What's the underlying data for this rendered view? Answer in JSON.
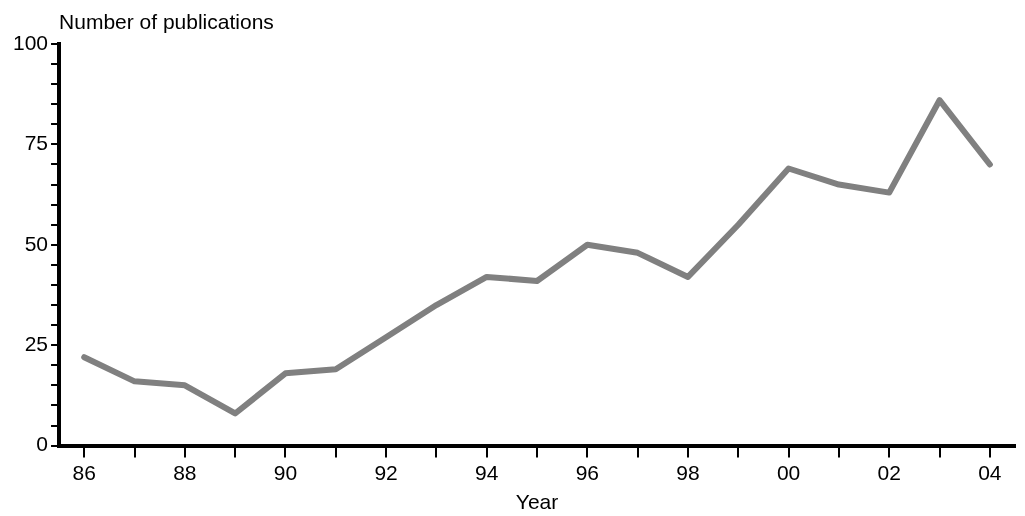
{
  "chart_data": {
    "type": "line",
    "xlabel": "Year",
    "ylabel": "Number of publications",
    "categories": [
      "86",
      null,
      "88",
      null,
      "90",
      null,
      "92",
      null,
      "94",
      null,
      "96",
      null,
      "98",
      null,
      "00",
      null,
      "02",
      null,
      "04"
    ],
    "series": [
      {
        "color": "#808080",
        "values": [
          22,
          16,
          15,
          8,
          18,
          19,
          27,
          35,
          42,
          41,
          50,
          48,
          42,
          55,
          69,
          65,
          63,
          86,
          70
        ]
      }
    ],
    "ylim": [
      0,
      100
    ],
    "yticks": [
      0,
      {
        "value": 5,
        "label": null
      },
      {
        "value": 10,
        "label": null
      },
      {
        "value": 15,
        "label": null
      },
      {
        "value": 20,
        "label": null
      },
      25,
      {
        "value": 30,
        "label": null
      },
      {
        "value": 35,
        "label": null
      },
      {
        "value": 40,
        "label": null
      },
      {
        "value": 45,
        "label": null
      },
      50,
      {
        "value": 55,
        "label": null
      },
      {
        "value": 60,
        "label": null
      },
      {
        "value": 65,
        "label": null
      },
      {
        "value": 70,
        "label": null
      },
      75,
      {
        "value": 80,
        "label": null
      },
      {
        "value": 85,
        "label": null
      },
      {
        "value": 90,
        "label": null
      },
      {
        "value": 95,
        "label": null
      },
      100
    ],
    "grid": false,
    "legend": false,
    "marker": "none",
    "line_style": "solid"
  }
}
